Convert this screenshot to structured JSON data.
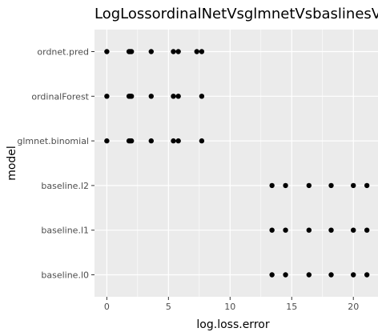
{
  "chart_data": {
    "type": "scatter",
    "title": "LogLossordinalNetVsglmnetVsbaslinesVsord",
    "xlabel": "log.loss.error",
    "ylabel": "model",
    "xlim": [
      -1.0,
      22.0
    ],
    "x_ticks": [
      "0",
      "5",
      "10",
      "15",
      "20"
    ],
    "categories": [
      "baseline.l0",
      "baseline.l1",
      "baseline.l2",
      "glmnet.binomial",
      "ordinalForest",
      "ordnet.pred"
    ],
    "grid": true,
    "panel_background": "#ebebeb",
    "grid_color": "#ffffff",
    "point_color": "#000000",
    "points": [
      {
        "model": "ordnet.pred",
        "x": 0.0
      },
      {
        "model": "ordnet.pred",
        "x": 1.8
      },
      {
        "model": "ordnet.pred",
        "x": 1.9
      },
      {
        "model": "ordnet.pred",
        "x": 2.0
      },
      {
        "model": "ordnet.pred",
        "x": 3.6
      },
      {
        "model": "ordnet.pred",
        "x": 5.4
      },
      {
        "model": "ordnet.pred",
        "x": 5.8
      },
      {
        "model": "ordnet.pred",
        "x": 7.3
      },
      {
        "model": "ordnet.pred",
        "x": 7.7
      },
      {
        "model": "ordinalForest",
        "x": 0.0
      },
      {
        "model": "ordinalForest",
        "x": 1.8
      },
      {
        "model": "ordinalForest",
        "x": 1.9
      },
      {
        "model": "ordinalForest",
        "x": 2.0
      },
      {
        "model": "ordinalForest",
        "x": 3.6
      },
      {
        "model": "ordinalForest",
        "x": 5.4
      },
      {
        "model": "ordinalForest",
        "x": 5.8
      },
      {
        "model": "ordinalForest",
        "x": 7.7
      },
      {
        "model": "glmnet.binomial",
        "x": 0.0
      },
      {
        "model": "glmnet.binomial",
        "x": 1.8
      },
      {
        "model": "glmnet.binomial",
        "x": 1.9
      },
      {
        "model": "glmnet.binomial",
        "x": 2.0
      },
      {
        "model": "glmnet.binomial",
        "x": 3.6
      },
      {
        "model": "glmnet.binomial",
        "x": 5.4
      },
      {
        "model": "glmnet.binomial",
        "x": 5.8
      },
      {
        "model": "glmnet.binomial",
        "x": 7.7
      },
      {
        "model": "baseline.l2",
        "x": 13.4
      },
      {
        "model": "baseline.l2",
        "x": 14.5
      },
      {
        "model": "baseline.l2",
        "x": 16.4
      },
      {
        "model": "baseline.l2",
        "x": 18.2
      },
      {
        "model": "baseline.l2",
        "x": 20.0
      },
      {
        "model": "baseline.l2",
        "x": 21.1
      },
      {
        "model": "baseline.l1",
        "x": 13.4
      },
      {
        "model": "baseline.l1",
        "x": 14.5
      },
      {
        "model": "baseline.l1",
        "x": 16.4
      },
      {
        "model": "baseline.l1",
        "x": 18.2
      },
      {
        "model": "baseline.l1",
        "x": 20.0
      },
      {
        "model": "baseline.l1",
        "x": 21.1
      },
      {
        "model": "baseline.l0",
        "x": 13.4
      },
      {
        "model": "baseline.l0",
        "x": 14.5
      },
      {
        "model": "baseline.l0",
        "x": 16.4
      },
      {
        "model": "baseline.l0",
        "x": 18.2
      },
      {
        "model": "baseline.l0",
        "x": 20.0
      },
      {
        "model": "baseline.l0",
        "x": 21.1
      }
    ]
  }
}
